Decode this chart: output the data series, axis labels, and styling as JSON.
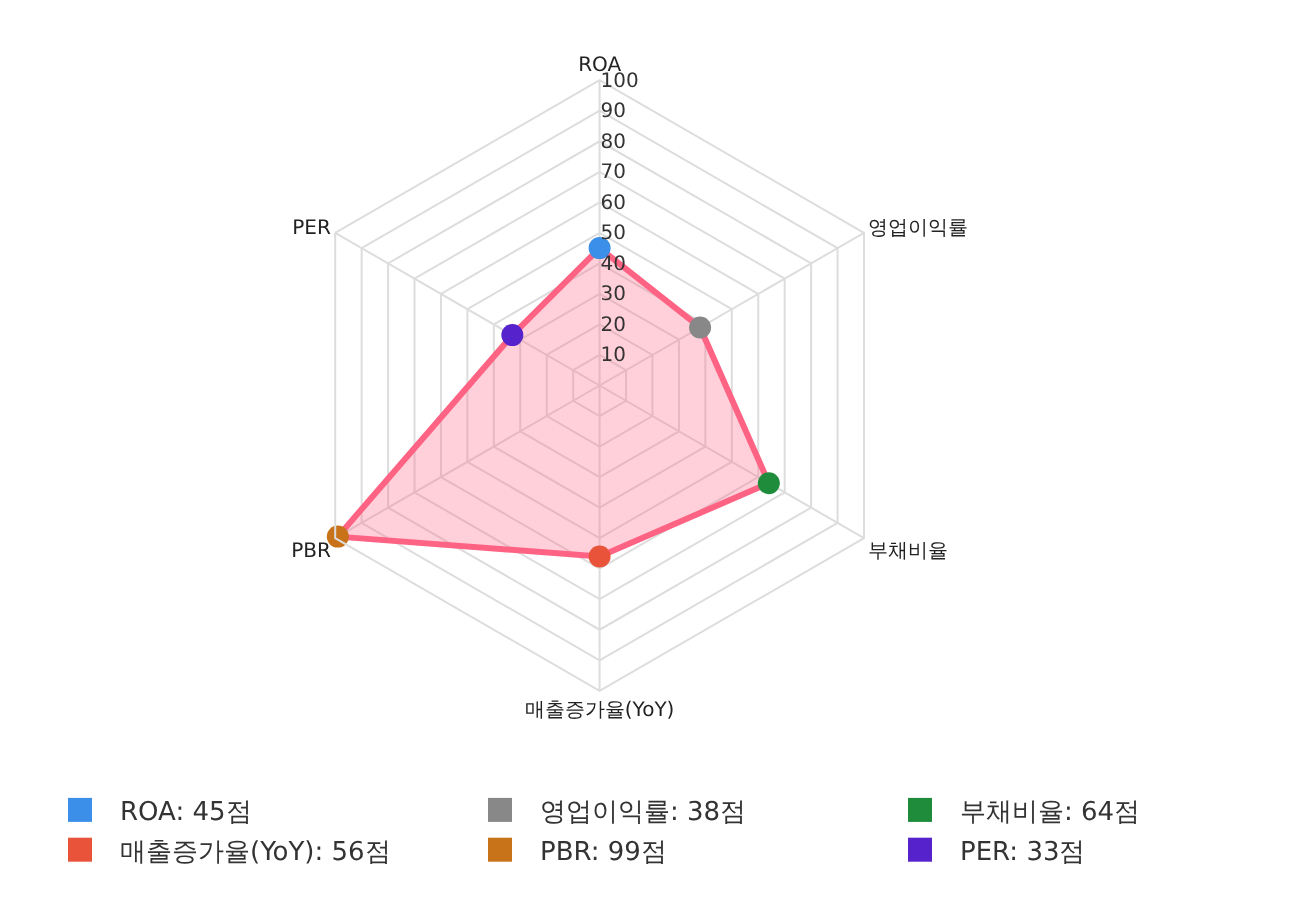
{
  "chart_data": {
    "type": "radar",
    "categories": [
      "ROA",
      "영업이익률",
      "부채비율",
      "매출증가율(YoY)",
      "PBR",
      "PER"
    ],
    "series": [
      {
        "color": "#ff6384",
        "values": [
          45,
          38,
          64,
          56,
          99,
          33
        ]
      }
    ],
    "colors": [
      "#3b8fe8",
      "#888888",
      "#1e8c3a",
      "#e8533a",
      "#c8731a",
      "#5522cc"
    ],
    "value_labels": [
      "ROA: 45점",
      "영업이익률: 38점",
      "부채비율: 64점",
      "매출증가율(YoY): 56점",
      "PBR: 99점",
      "PER: 33점"
    ],
    "ylim": [
      0,
      100
    ],
    "yticks": [
      10,
      20,
      30,
      40,
      50,
      60,
      70,
      80,
      90,
      100
    ],
    "grid": true,
    "marker": "circle"
  }
}
